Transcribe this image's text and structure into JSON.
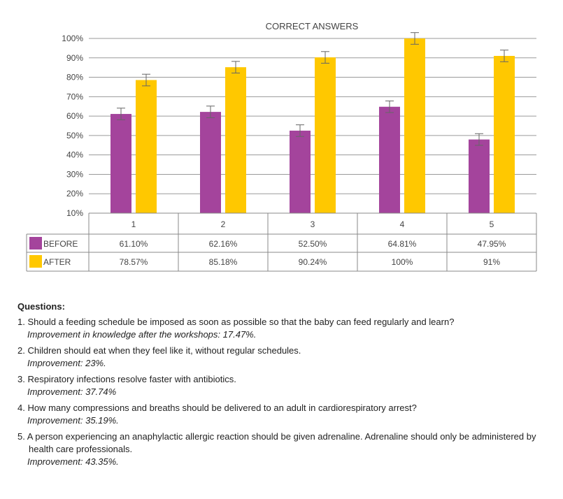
{
  "chart_data": {
    "type": "bar",
    "title": "CORRECT ANSWERS",
    "categories": [
      "1",
      "2",
      "3",
      "4",
      "5"
    ],
    "ylim": [
      10,
      100
    ],
    "yticks": [
      "10%",
      "20%",
      "30%",
      "40%",
      "50%",
      "60%",
      "70%",
      "80%",
      "90%",
      "100%"
    ],
    "grid": true,
    "error_bars": "approx ±3%",
    "series": [
      {
        "name": "BEFORE",
        "color": "#A4449C",
        "values": [
          61.1,
          62.16,
          52.5,
          64.81,
          47.95
        ],
        "labels": [
          "61.10%",
          "62.16%",
          "52.50%",
          "64.81%",
          "47.95%"
        ]
      },
      {
        "name": "AFTER",
        "color": "#FFC800",
        "values": [
          78.57,
          85.18,
          90.24,
          100,
          91
        ],
        "labels": [
          "78.57%",
          "85.18%",
          "90.24%",
          "100%",
          "91%"
        ]
      }
    ],
    "legend_placement": "data table below chart"
  },
  "questions": {
    "heading": "Questions:",
    "items": [
      {
        "text": "1. Should a feeding schedule be imposed as soon as possible so that the baby can feed regularly and learn?",
        "improvement": "Improvement in knowledge after the workshops: 17.47%."
      },
      {
        "text": "2. Children should eat when they feel like it, without regular schedules.",
        "improvement": "Improvement: 23%."
      },
      {
        "text": "3. Respiratory infections resolve faster with antibiotics.",
        "improvement": "Improvement: 37.74%"
      },
      {
        "text": "4. How many compressions and breaths should be delivered to an adult in cardiorespiratory arrest?",
        "improvement": "Improvement: 35.19%."
      },
      {
        "text": "5. A person experiencing an anaphylactic allergic reaction should be given adrenaline. Adrenaline should only be administered by health care professionals.",
        "improvement": "Improvement: 43.35%."
      }
    ]
  }
}
